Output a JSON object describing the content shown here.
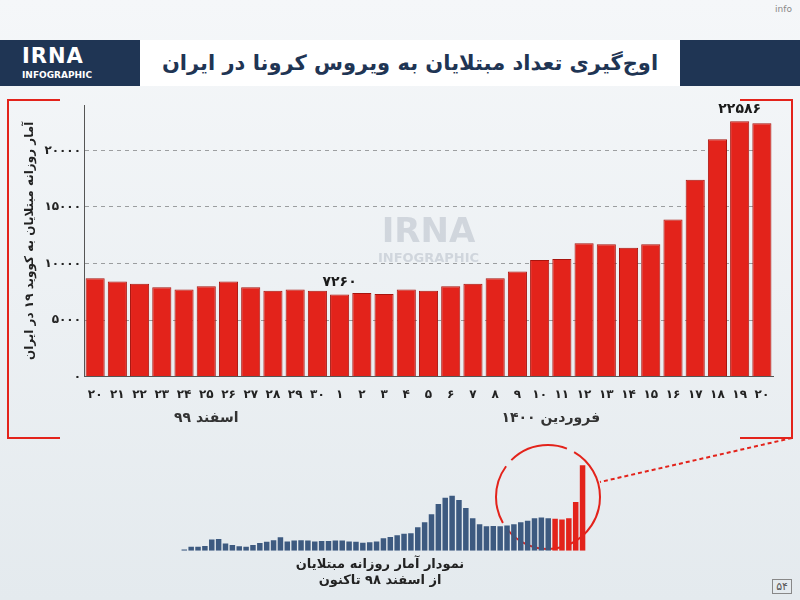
{
  "header": {
    "logo": "IRNA",
    "logo_sub": "INFOGRAPHIC",
    "corner": "info"
  },
  "footer": {
    "page": "۵۴"
  },
  "chart_data": [
    {
      "type": "bar",
      "title": "اوج‌گیری تعداد مبتلایان به ویروس کرونا در ایران",
      "y_label": "آمار روزانه مبتلایان به کووید ۱۹ در ایران",
      "categories": [
        "۲۰",
        "۲۱",
        "۲۲",
        "۲۳",
        "۲۴",
        "۲۵",
        "۲۶",
        "۲۷",
        "۲۸",
        "۲۹",
        "۳۰",
        "۱",
        "۲",
        "۳",
        "۴",
        "۵",
        "۶",
        "۷",
        "۸",
        "۹",
        "۱۰",
        "۱۱",
        "۱۲",
        "۱۳",
        "۱۴",
        "۱۵",
        "۱۶",
        "۱۷",
        "۱۸",
        "۱۹",
        "۲۰"
      ],
      "x_groups": [
        {
          "label": "اسفند ۹۹",
          "count": 11
        },
        {
          "label": "فروردین ۱۴۰۰",
          "count": 20
        }
      ],
      "values": [
        8700,
        8400,
        8200,
        7900,
        7700,
        8000,
        8400,
        7900,
        7600,
        7700,
        7600,
        7260,
        7400,
        7300,
        7700,
        7600,
        8000,
        8200,
        8700,
        9300,
        10300,
        10400,
        11800,
        11700,
        11400,
        11700,
        13900,
        17400,
        21000,
        22586,
        22400
      ],
      "value_labels": [
        null,
        null,
        null,
        null,
        null,
        null,
        null,
        null,
        null,
        null,
        null,
        "۷۲۶۰",
        null,
        null,
        null,
        null,
        null,
        null,
        null,
        null,
        null,
        null,
        null,
        null,
        null,
        null,
        null,
        null,
        null,
        "۲۲۵۸۶",
        null
      ],
      "color": "#e3231b",
      "ylim": [
        0,
        24000
      ],
      "yticks": [
        {
          "value": 0,
          "label": "۰"
        },
        {
          "value": 5000,
          "label": "۵۰۰۰"
        },
        {
          "value": 10000,
          "label": "۱۰۰۰۰"
        },
        {
          "value": 15000,
          "label": "۱۵۰۰۰"
        },
        {
          "value": 20000,
          "label": "۲۰۰۰۰"
        }
      ],
      "grid": true
    },
    {
      "type": "bar",
      "title": [
        "نمودار آمار روزانه مبتلایان",
        "از اسفند ۹۸ تاکنون"
      ],
      "values": [
        30,
        300,
        1000,
        1000,
        1200,
        2800,
        2900,
        1800,
        1400,
        1100,
        1000,
        1400,
        1900,
        2200,
        2600,
        3300,
        2300,
        2500,
        2600,
        2500,
        2300,
        2400,
        2400,
        2500,
        2500,
        2300,
        2200,
        2000,
        2100,
        2300,
        3100,
        3400,
        3800,
        4200,
        4300,
        5800,
        7000,
        9000,
        11500,
        13000,
        13500,
        12500,
        10500,
        8000,
        6500,
        6000,
        6100,
        6000,
        6200,
        6500,
        7000,
        7400,
        8000,
        8200,
        8000,
        7900,
        7700,
        8000,
        12000,
        21000
      ],
      "colors": [
        "#3d5a80",
        "#3d5a80",
        "#3d5a80",
        "#3d5a80",
        "#3d5a80",
        "#3d5a80",
        "#3d5a80",
        "#3d5a80",
        "#3d5a80",
        "#3d5a80",
        "#3d5a80",
        "#3d5a80",
        "#3d5a80",
        "#3d5a80",
        "#3d5a80",
        "#3d5a80",
        "#3d5a80",
        "#3d5a80",
        "#3d5a80",
        "#3d5a80",
        "#3d5a80",
        "#3d5a80",
        "#3d5a80",
        "#3d5a80",
        "#3d5a80",
        "#3d5a80",
        "#3d5a80",
        "#3d5a80",
        "#3d5a80",
        "#3d5a80",
        "#3d5a80",
        "#3d5a80",
        "#3d5a80",
        "#3d5a80",
        "#3d5a80",
        "#3d5a80",
        "#3d5a80",
        "#3d5a80",
        "#3d5a80",
        "#3d5a80",
        "#3d5a80",
        "#3d5a80",
        "#3d5a80",
        "#3d5a80",
        "#3d5a80",
        "#3d5a80",
        "#3d5a80",
        "#3d5a80",
        "#3d5a80",
        "#3d5a80",
        "#3d5a80",
        "#3d5a80",
        "#3d5a80",
        "#3d5a80",
        "#3d5a80",
        "#e3231b",
        "#e3231b",
        "#e3231b",
        "#e3231b",
        "#e3231b"
      ],
      "tick_labels": false,
      "grid": false
    }
  ]
}
